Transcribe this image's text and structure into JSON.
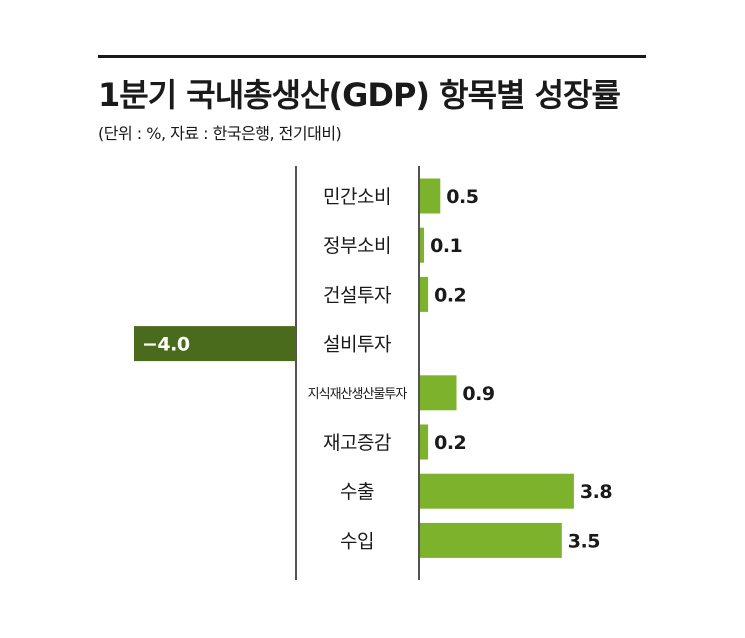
{
  "title": "1분기 국내총생산(GDP) 항목별 성장률",
  "subtitle": "(단위 : %, 자료 : 한국은행, 전기대비)",
  "colors": {
    "positive": "#7cb22c",
    "negative": "#4b6b1c",
    "text": "#1a1a1a"
  },
  "chart_data": {
    "type": "bar",
    "orientation": "horizontal",
    "categories": [
      "민간소비",
      "정부소비",
      "건설투자",
      "설비투자",
      "지식재산생산물투자",
      "재고증감",
      "수출",
      "수입"
    ],
    "values": [
      0.5,
      0.1,
      0.2,
      -4.0,
      0.9,
      0.2,
      3.8,
      3.5
    ],
    "value_labels": [
      "0.5",
      "0.1",
      "0.2",
      "−4.0",
      "0.9",
      "0.2",
      "3.8",
      "3.5"
    ],
    "title": "1분기 국내총생산(GDP) 항목별 성장률",
    "unit": "%",
    "grid": false,
    "legend": "none"
  }
}
